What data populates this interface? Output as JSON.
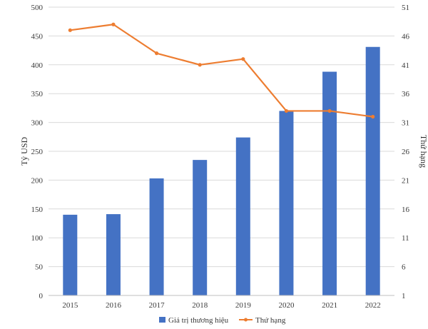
{
  "chart_data": {
    "type": "bar",
    "categories": [
      "2015",
      "2016",
      "2017",
      "2018",
      "2019",
      "2020",
      "2021",
      "2022"
    ],
    "series": [
      {
        "name": "Giá trị thương hiệu",
        "type": "bar",
        "axis": "left",
        "color": "#4472c4",
        "values": [
          140,
          141,
          203,
          235,
          274,
          320,
          388,
          431
        ]
      },
      {
        "name": "Thứ hạng",
        "type": "line",
        "axis": "right",
        "color": "#ed7d31",
        "values": [
          47,
          48,
          43,
          41,
          42,
          33,
          33,
          32
        ]
      }
    ],
    "ylabel": "Tỷ USD",
    "y2label": "Thứ hạng",
    "ylim": [
      0,
      500
    ],
    "y2lim": [
      1,
      51
    ],
    "yticks": [
      "0",
      "50",
      "100",
      "150",
      "200",
      "250",
      "300",
      "350",
      "400",
      "450",
      "500"
    ],
    "y2ticks": [
      "1",
      "6",
      "11",
      "16",
      "21",
      "26",
      "31",
      "36",
      "41",
      "46",
      "51"
    ],
    "grid": true,
    "legend_position": "bottom"
  }
}
